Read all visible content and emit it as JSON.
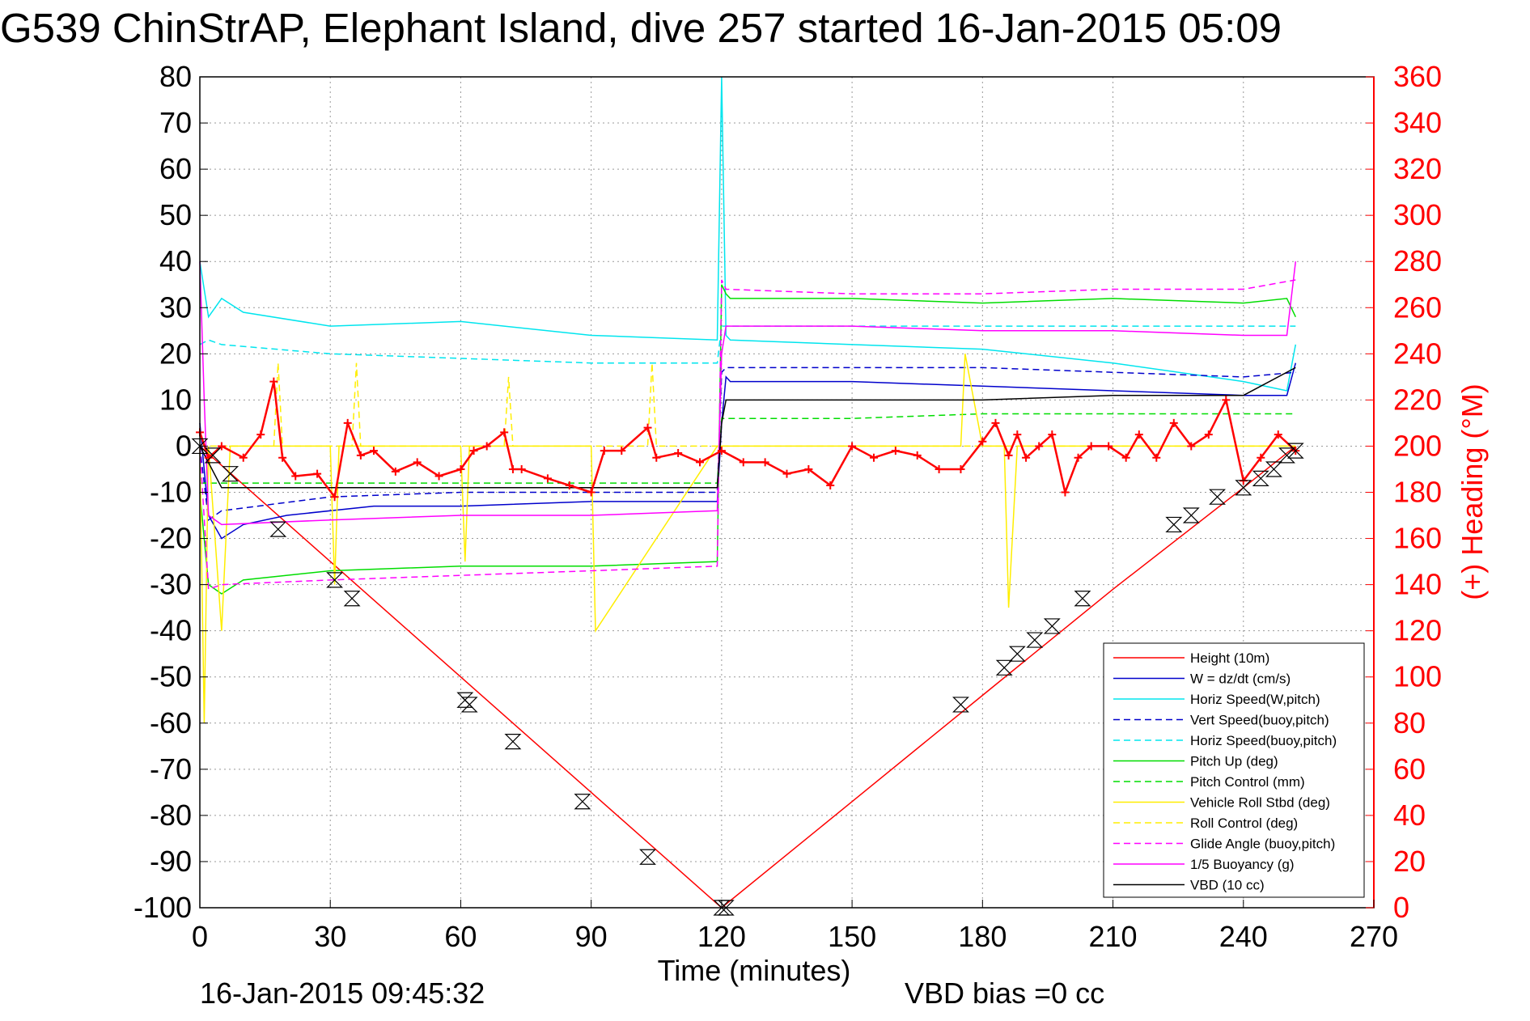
{
  "title": "G539 ChinStrAP, Elephant Island, dive 257 started 16-Jan-2015 05:09",
  "footer": {
    "timestamp": "16-Jan-2015 09:45:32",
    "vbd_bias": "VBD bias =0 cc"
  },
  "chart_data": {
    "type": "line",
    "xlabel": "Time (minutes)",
    "ylabel_left": "",
    "ylabel_right": "(+) Heading (°M)",
    "xlim": [
      0,
      270
    ],
    "ylim_left": [
      -100,
      80
    ],
    "ylim_right": [
      0,
      360
    ],
    "x_ticks": [
      "0",
      "30",
      "60",
      "90",
      "120",
      "150",
      "180",
      "210",
      "240",
      "270"
    ],
    "y_ticks_left": [
      "80",
      "70",
      "60",
      "50",
      "40",
      "30",
      "20",
      "10",
      "0",
      "-10",
      "-20",
      "-30",
      "-40",
      "-50",
      "-60",
      "-70",
      "-80",
      "-90",
      "-100"
    ],
    "y_ticks_right": [
      "360",
      "340",
      "320",
      "300",
      "280",
      "260",
      "240",
      "220",
      "200",
      "180",
      "160",
      "140",
      "120",
      "100",
      "80",
      "60",
      "40",
      "20",
      "0"
    ],
    "grid": true,
    "legend_position": "bottom-right",
    "series": [
      {
        "name": "Height (10m)",
        "color": "#ff0000",
        "style": "solid",
        "axis": "left",
        "x": [
          0,
          30,
          60,
          90,
          120,
          150,
          180,
          210,
          240,
          252
        ],
        "y": [
          0,
          -25,
          -50,
          -75,
          -100,
          -77,
          -54,
          -31,
          -9,
          0
        ]
      },
      {
        "name": "W = dz/dt (cm/s)",
        "color": "#0000cc",
        "style": "solid",
        "axis": "left",
        "x": [
          0,
          2,
          5,
          10,
          20,
          40,
          60,
          90,
          119,
          120,
          121,
          122,
          150,
          180,
          210,
          240,
          250,
          252
        ],
        "y": [
          5,
          -15,
          -20,
          -17,
          -15,
          -13,
          -13,
          -12,
          -12,
          5,
          15,
          14,
          14,
          13,
          12,
          11,
          11,
          18
        ]
      },
      {
        "name": "Horiz Speed(W,pitch)",
        "color": "#00e5ee",
        "style": "solid",
        "axis": "left",
        "x": [
          0,
          2,
          5,
          10,
          30,
          60,
          90,
          119,
          120,
          121,
          122,
          150,
          180,
          210,
          240,
          250,
          252
        ],
        "y": [
          40,
          28,
          32,
          29,
          26,
          27,
          24,
          23,
          80,
          24,
          23,
          22,
          21,
          18,
          14,
          12,
          22
        ]
      },
      {
        "name": "Vert Speed(buoy,pitch)",
        "color": "#0000cc",
        "style": "dashed",
        "axis": "left",
        "x": [
          0,
          2,
          5,
          30,
          60,
          90,
          119,
          120,
          121,
          150,
          180,
          210,
          240,
          252
        ],
        "y": [
          0,
          -16,
          -14,
          -11,
          -10,
          -10,
          -10,
          16,
          17,
          17,
          17,
          16,
          15,
          16
        ]
      },
      {
        "name": "Horiz Speed(buoy,pitch)",
        "color": "#00e5ee",
        "style": "dashed",
        "axis": "left",
        "x": [
          0,
          2,
          5,
          30,
          60,
          90,
          119,
          120,
          121,
          150,
          180,
          210,
          240,
          252
        ],
        "y": [
          22,
          23,
          22,
          20,
          19,
          18,
          18,
          26,
          26,
          26,
          26,
          26,
          26,
          26
        ]
      },
      {
        "name": "Pitch Up (deg)",
        "color": "#00dd00",
        "style": "solid",
        "axis": "left",
        "x": [
          0,
          2,
          5,
          10,
          30,
          60,
          90,
          119,
          120,
          121,
          122,
          150,
          180,
          210,
          240,
          250,
          252
        ],
        "y": [
          -10,
          -30,
          -32,
          -29,
          -27,
          -26,
          -26,
          -25,
          35,
          33,
          32,
          32,
          31,
          32,
          31,
          32,
          28
        ]
      },
      {
        "name": "Pitch Control (mm)",
        "color": "#00dd00",
        "style": "dashed",
        "axis": "left",
        "x": [
          0,
          2,
          30,
          60,
          90,
          119,
          120,
          121,
          150,
          180,
          210,
          240,
          252
        ],
        "y": [
          -8,
          -8,
          -8,
          -8,
          -8,
          -8,
          6,
          6,
          6,
          7,
          7,
          7,
          7
        ]
      },
      {
        "name": "Vehicle Roll Stbd (deg)",
        "color": "#ffee00",
        "style": "solid",
        "axis": "left",
        "x": [
          0,
          1,
          2,
          5,
          7,
          10,
          30,
          31,
          32,
          60,
          61,
          62,
          90,
          91,
          119,
          120,
          121,
          150,
          175,
          176,
          180,
          185,
          186,
          188,
          210,
          240,
          250,
          252
        ],
        "y": [
          0,
          -60,
          0,
          -40,
          0,
          0,
          0,
          -30,
          0,
          0,
          -25,
          0,
          0,
          -40,
          0,
          0,
          0,
          0,
          0,
          20,
          0,
          0,
          -35,
          0,
          0,
          0,
          0,
          0
        ]
      },
      {
        "name": "Roll Control (deg)",
        "color": "#ffee00",
        "style": "dashed",
        "axis": "left",
        "x": [
          0,
          17,
          18,
          19,
          30,
          35,
          36,
          37,
          60,
          70,
          71,
          72,
          90,
          103,
          104,
          105,
          120,
          150,
          180,
          210,
          240,
          252
        ],
        "y": [
          0,
          0,
          18,
          0,
          0,
          0,
          18,
          0,
          0,
          0,
          15,
          0,
          0,
          0,
          18,
          0,
          0,
          0,
          0,
          0,
          0,
          0
        ]
      },
      {
        "name": "Glide Angle (buoy,pitch)",
        "color": "#ff00ff",
        "style": "dashed",
        "axis": "left",
        "x": [
          0,
          2,
          5,
          30,
          60,
          90,
          119,
          120,
          121,
          150,
          180,
          210,
          240,
          252
        ],
        "y": [
          0,
          -31,
          -30,
          -29,
          -28,
          -27,
          -26,
          36,
          34,
          33,
          33,
          34,
          34,
          36
        ]
      },
      {
        "name": "1/5 Buoyancy (g)",
        "color": "#ff00ff",
        "style": "solid",
        "axis": "left",
        "x": [
          0,
          1,
          2,
          5,
          30,
          60,
          90,
          119,
          120,
          121,
          150,
          180,
          210,
          240,
          250,
          252
        ],
        "y": [
          40,
          10,
          -15,
          -17,
          -16,
          -15,
          -15,
          -14,
          20,
          26,
          26,
          25,
          25,
          24,
          24,
          40
        ]
      },
      {
        "name": "VBD (10 cc)",
        "color": "#000000",
        "style": "solid",
        "axis": "left",
        "x": [
          0,
          5,
          30,
          60,
          90,
          119,
          120,
          121,
          150,
          180,
          210,
          240,
          252
        ],
        "y": [
          0,
          -9,
          -9,
          -9,
          -9,
          -9,
          5,
          10,
          10,
          10,
          11,
          11,
          17
        ]
      }
    ],
    "heading": {
      "name": "(+) Heading (°M)",
      "color": "#ff0000",
      "axis": "right",
      "x": [
        0,
        2,
        5,
        10,
        14,
        17,
        19,
        22,
        27,
        31,
        34,
        37,
        40,
        45,
        50,
        55,
        60,
        63,
        66,
        70,
        72,
        74,
        80,
        85,
        90,
        93,
        97,
        103,
        105,
        110,
        115,
        120,
        125,
        130,
        135,
        140,
        145,
        150,
        155,
        160,
        165,
        170,
        175,
        180,
        183,
        186,
        188,
        190,
        193,
        196,
        199,
        202,
        205,
        209,
        213,
        216,
        220,
        224,
        228,
        232,
        236,
        240,
        244,
        248,
        252
      ],
      "y": [
        206,
        195,
        200,
        195,
        205,
        228,
        195,
        187,
        188,
        178,
        210,
        196,
        198,
        189,
        193,
        187,
        190,
        198,
        200,
        206,
        190,
        190,
        186,
        183,
        180,
        198,
        198,
        208,
        195,
        197,
        193,
        198,
        193,
        193,
        188,
        190,
        183,
        200,
        195,
        198,
        196,
        190,
        190,
        202,
        210,
        196,
        205,
        195,
        200,
        205,
        180,
        195,
        200,
        200,
        195,
        205,
        195,
        210,
        200,
        205,
        220,
        185,
        195,
        205,
        198
      ]
    },
    "depth_markers": {
      "x": [
        0,
        3,
        7,
        18,
        31,
        35,
        61,
        62,
        72,
        88,
        103,
        120,
        121,
        175,
        185,
        188,
        192,
        196,
        203,
        224,
        228,
        234,
        240,
        244,
        247,
        250,
        252
      ],
      "y": [
        0,
        -2,
        -6,
        -18,
        -29,
        -33,
        -55,
        -56,
        -64,
        -77,
        -89,
        -100,
        -100,
        -56,
        -48,
        -45,
        -42,
        -39,
        -33,
        -17,
        -15,
        -11,
        -9,
        -7,
        -5,
        -2,
        -1
      ]
    }
  }
}
